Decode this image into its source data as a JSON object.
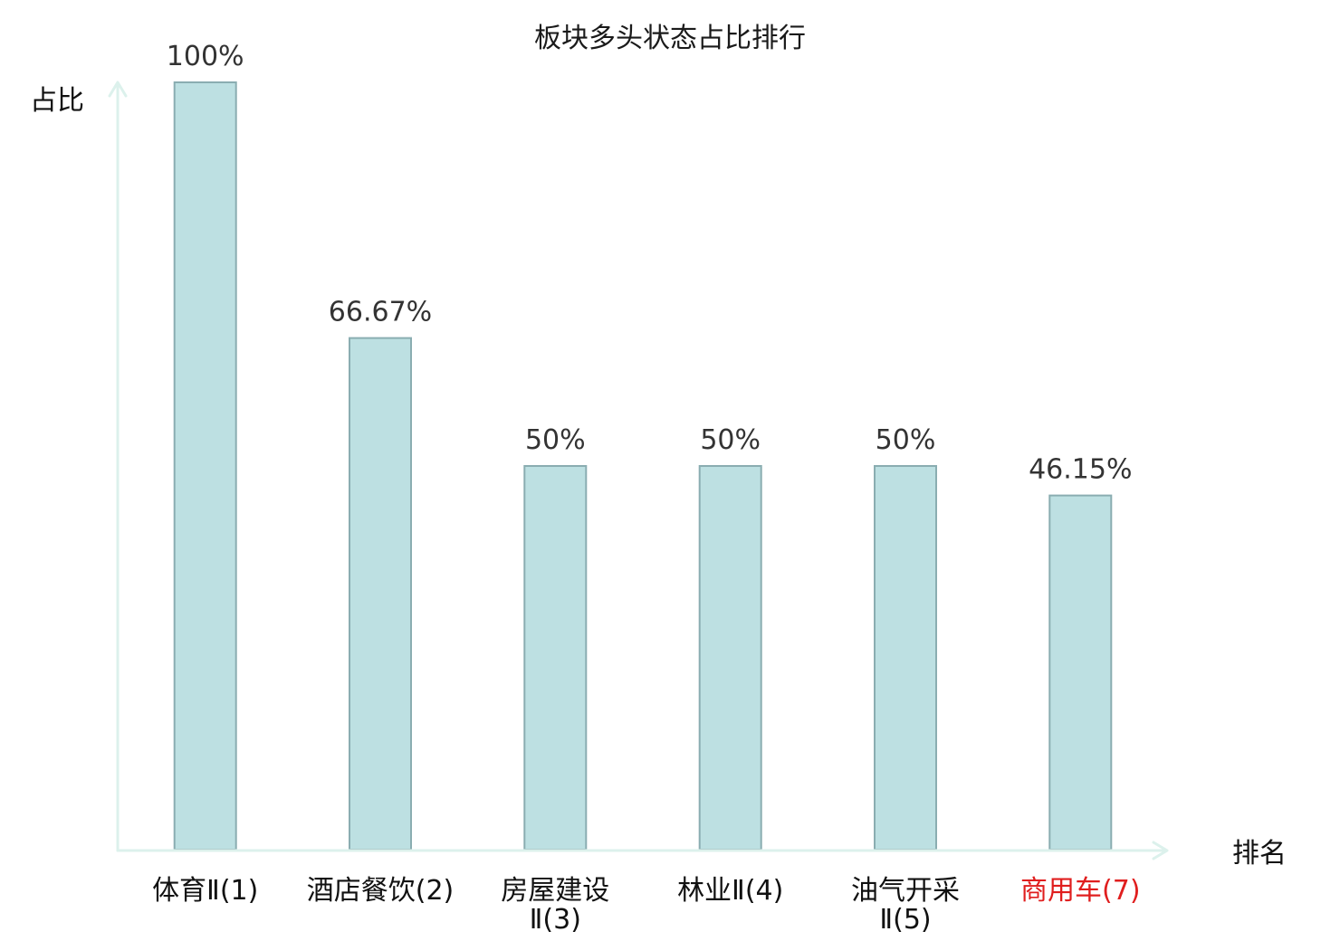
{
  "chart_data": {
    "type": "bar",
    "title": "板块多头状态占比排行",
    "xlabel": "排名",
    "ylabel": "占比",
    "categories": [
      "体育Ⅱ(1)",
      "酒店餐饮(2)",
      "房屋建设Ⅱ(3)",
      "林业Ⅱ(4)",
      "油气开采Ⅱ(5)",
      "商用车(7)"
    ],
    "values": [
      100,
      66.67,
      50,
      50,
      50,
      46.15
    ],
    "value_labels": [
      "100%",
      "66.67%",
      "50%",
      "50%",
      "50%",
      "46.15%"
    ],
    "ylim": [
      0,
      100
    ],
    "grid": false,
    "highlight": {
      "category_index": 5,
      "color": "#e01e1e"
    },
    "colors": {
      "bar_fill": "#bde0e2",
      "bar_stroke": "#8aadb1",
      "axis": "#dcf1ec",
      "value_label": "#333333",
      "category_label": "#111111"
    }
  }
}
